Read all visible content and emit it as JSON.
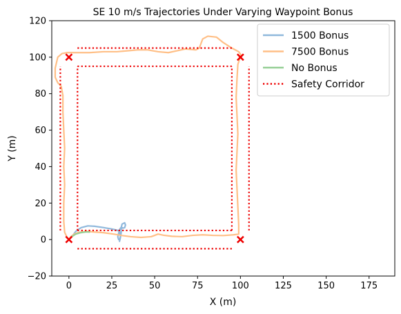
{
  "chart_data": {
    "type": "line",
    "title": "SE 10 m/s Trajectories Under Varying Waypoint Bonus",
    "xlabel": "X (m)",
    "ylabel": "Y (m)",
    "xlim": [
      -10,
      190
    ],
    "ylim": [
      -20,
      120
    ],
    "xticks": [
      0,
      25,
      50,
      75,
      100,
      125,
      150,
      175
    ],
    "yticks": [
      -20,
      0,
      20,
      40,
      60,
      80,
      100,
      120
    ],
    "grid": false,
    "legend_position": "top-right",
    "series": [
      {
        "name": "1500 Bonus",
        "color": "#8fb8dc",
        "points": [
          [
            0,
            0
          ],
          [
            2,
            2
          ],
          [
            4,
            4.5
          ],
          [
            7,
            6.5
          ],
          [
            11,
            7.5
          ],
          [
            15,
            7.3
          ],
          [
            20,
            6.6
          ],
          [
            25,
            5.8
          ],
          [
            28,
            5.2
          ],
          [
            29.5,
            4.5
          ],
          [
            30,
            2
          ],
          [
            29.5,
            -1
          ],
          [
            30,
            1
          ],
          [
            30.5,
            4
          ],
          [
            30.5,
            6.5
          ],
          [
            31,
            8.5
          ],
          [
            32.5,
            9.2
          ],
          [
            33,
            8
          ],
          [
            32.5,
            6.5
          ],
          [
            31.5,
            6.3
          ],
          [
            30.5,
            6.8
          ],
          [
            29.5,
            5.5
          ],
          [
            29,
            3.5
          ],
          [
            28.5,
            1.5
          ],
          [
            29,
            0
          ]
        ]
      },
      {
        "name": "7500 Bonus",
        "color": "#ffbf86",
        "points": [
          [
            0,
            0
          ],
          [
            1,
            1.5
          ],
          [
            3,
            3
          ],
          [
            6,
            4
          ],
          [
            10,
            4.5
          ],
          [
            14,
            4.2
          ],
          [
            20,
            3.8
          ],
          [
            26,
            3
          ],
          [
            31,
            2.2
          ],
          [
            36,
            1.6
          ],
          [
            42,
            1.2
          ],
          [
            48,
            1.6
          ],
          [
            52,
            3
          ],
          [
            55,
            2.4
          ],
          [
            60,
            1.8
          ],
          [
            66,
            1.6
          ],
          [
            72,
            2.3
          ],
          [
            78,
            2.6
          ],
          [
            84,
            2.3
          ],
          [
            90,
            2.2
          ],
          [
            96,
            2.6
          ],
          [
            99,
            3
          ],
          [
            99,
            8
          ],
          [
            98.5,
            18
          ],
          [
            98,
            28
          ],
          [
            97.5,
            38
          ],
          [
            98,
            48
          ],
          [
            98.5,
            58
          ],
          [
            98,
            68
          ],
          [
            97.5,
            78
          ],
          [
            98,
            88
          ],
          [
            98.5,
            96
          ],
          [
            99.5,
            99
          ],
          [
            100.5,
            101
          ],
          [
            99,
            103
          ],
          [
            95,
            105
          ],
          [
            90,
            108
          ],
          [
            86,
            111
          ],
          [
            81,
            111.5
          ],
          [
            78,
            110
          ],
          [
            76,
            105
          ],
          [
            74,
            104
          ],
          [
            68,
            104.5
          ],
          [
            63,
            103.5
          ],
          [
            58,
            102.5
          ],
          [
            52,
            103
          ],
          [
            46,
            104
          ],
          [
            40,
            104
          ],
          [
            34,
            103.5
          ],
          [
            28,
            103
          ],
          [
            20,
            103
          ],
          [
            12,
            102.5
          ],
          [
            5,
            102.5
          ],
          [
            -1,
            102.5
          ],
          [
            -4,
            102
          ],
          [
            -6.5,
            100
          ],
          [
            -8,
            94
          ],
          [
            -8,
            89
          ],
          [
            -6.5,
            86
          ],
          [
            -4.5,
            84
          ],
          [
            -3.5,
            79
          ],
          [
            -3.5,
            70
          ],
          [
            -3,
            60
          ],
          [
            -2.5,
            50
          ],
          [
            -3,
            40
          ],
          [
            -2.5,
            30
          ],
          [
            -3,
            20
          ],
          [
            -3,
            10
          ],
          [
            -2.5,
            4
          ],
          [
            -1,
            1
          ],
          [
            0,
            0
          ]
        ]
      },
      {
        "name": "No Bonus",
        "color": "#95cf95",
        "points": [
          [
            0,
            0
          ],
          [
            1.5,
            1.5
          ],
          [
            4,
            3
          ],
          [
            7,
            3.8
          ],
          [
            10,
            4.2
          ],
          [
            12,
            4.1
          ]
        ]
      },
      {
        "name": "Safety Corridor",
        "color": "#ee0000",
        "style": "dotted",
        "segments": [
          [
            [
              5,
              105
            ],
            [
              95,
              105
            ]
          ],
          [
            [
              5,
              95
            ],
            [
              95,
              95
            ]
          ],
          [
            [
              5,
              5
            ],
            [
              95,
              5
            ]
          ],
          [
            [
              5,
              -5
            ],
            [
              95,
              -5
            ]
          ],
          [
            [
              -5,
              5
            ],
            [
              -5,
              95
            ]
          ],
          [
            [
              5,
              5
            ],
            [
              5,
              95
            ]
          ],
          [
            [
              95,
              5
            ],
            [
              95,
              95
            ]
          ],
          [
            [
              105,
              5
            ],
            [
              105,
              95
            ]
          ]
        ]
      }
    ],
    "waypoints": {
      "marker": "x",
      "color": "#ee0000",
      "points": [
        [
          0,
          0
        ],
        [
          100,
          0
        ],
        [
          0,
          100
        ],
        [
          100,
          100
        ]
      ]
    }
  }
}
